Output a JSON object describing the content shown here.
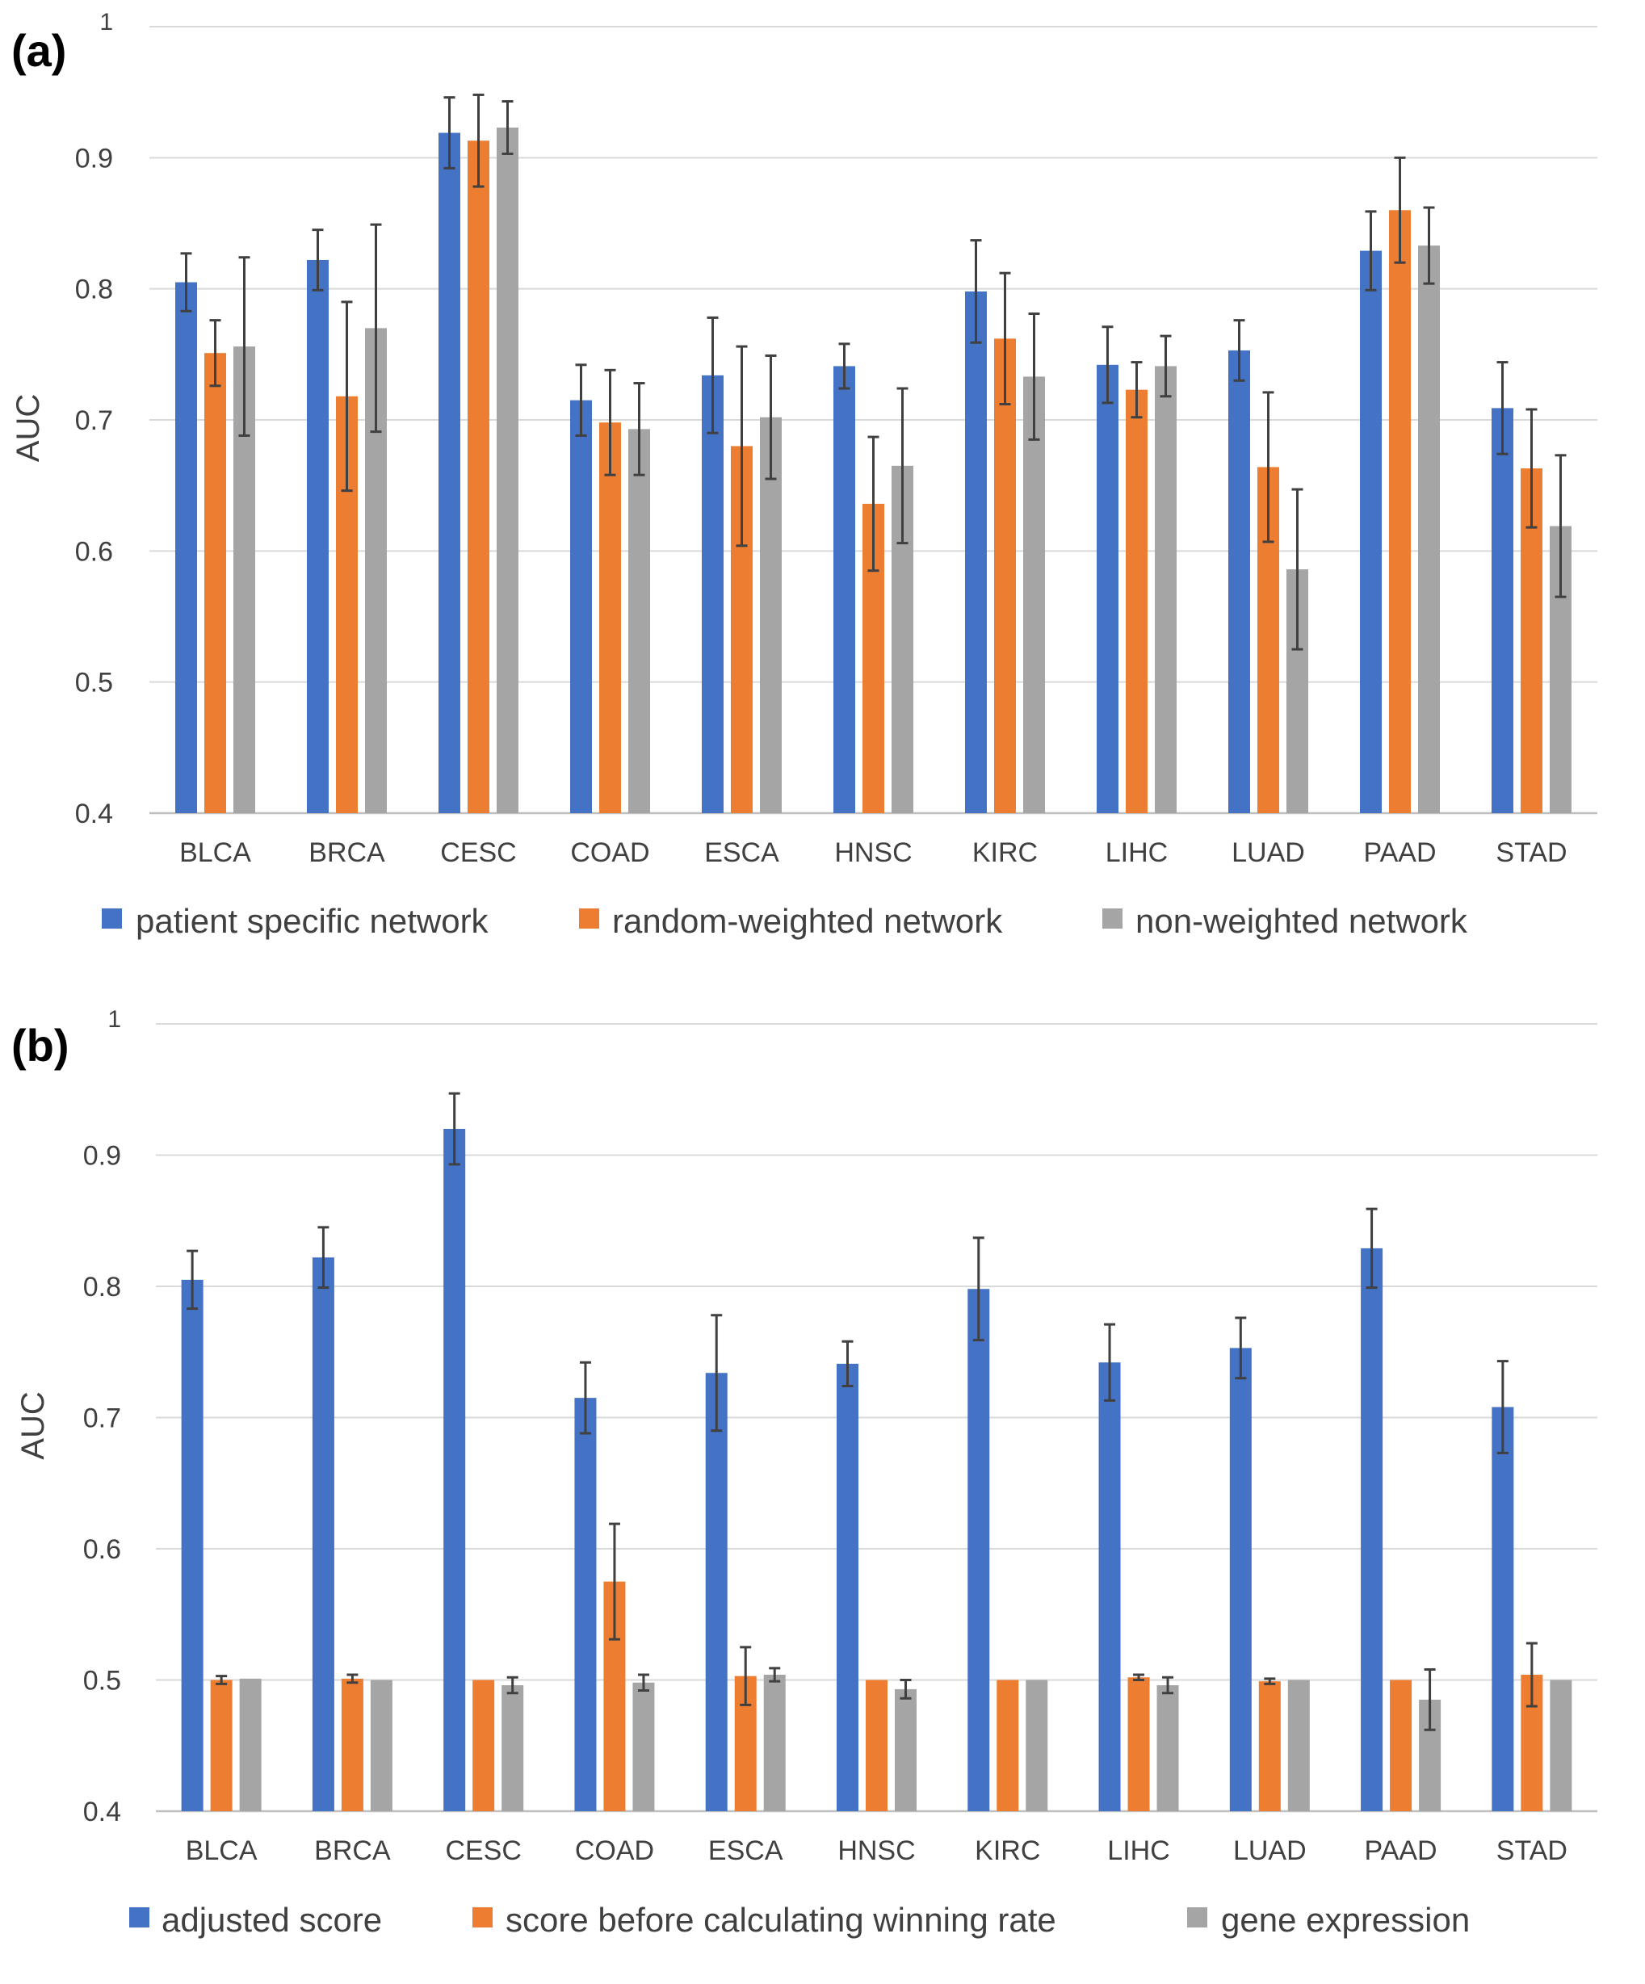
{
  "chart_data": [
    {
      "panel_label": "(a)",
      "type": "bar",
      "ylabel": "AUC",
      "xlabel": "",
      "ylim": [
        0.4,
        1.0
      ],
      "yticks": [
        "0.4",
        "0.5",
        "0.6",
        "0.7",
        "0.8",
        "0.9",
        "1"
      ],
      "grid": true,
      "legend_position": "bottom",
      "categories": [
        "BLCA",
        "BRCA",
        "CESC",
        "COAD",
        "ESCA",
        "HNSC",
        "KIRC",
        "LIHC",
        "LUAD",
        "PAAD",
        "STAD"
      ],
      "series": [
        {
          "name": "patient specific network",
          "color": "#4472C4",
          "values": [
            0.805,
            0.822,
            0.919,
            0.715,
            0.734,
            0.741,
            0.798,
            0.742,
            0.753,
            0.829,
            0.709
          ],
          "errors": [
            0.022,
            0.023,
            0.027,
            0.027,
            0.044,
            0.017,
            0.039,
            0.029,
            0.023,
            0.03,
            0.035
          ]
        },
        {
          "name": "random-weighted network",
          "color": "#ED7D31",
          "values": [
            0.751,
            0.718,
            0.913,
            0.698,
            0.68,
            0.636,
            0.762,
            0.723,
            0.664,
            0.86,
            0.663
          ],
          "errors": [
            0.025,
            0.072,
            0.035,
            0.04,
            0.076,
            0.051,
            0.05,
            0.021,
            0.057,
            0.04,
            0.045
          ]
        },
        {
          "name": "non-weighted network",
          "color": "#A5A5A5",
          "values": [
            0.756,
            0.77,
            0.923,
            0.693,
            0.702,
            0.665,
            0.733,
            0.741,
            0.586,
            0.833,
            0.619
          ],
          "errors": [
            0.068,
            0.079,
            0.02,
            0.035,
            0.047,
            0.059,
            0.048,
            0.023,
            0.061,
            0.029,
            0.054
          ]
        }
      ]
    },
    {
      "panel_label": "(b)",
      "type": "bar",
      "ylabel": "AUC",
      "xlabel": "",
      "ylim": [
        0.4,
        1.0
      ],
      "yticks": [
        "0.4",
        "0.5",
        "0.6",
        "0.7",
        "0.8",
        "0.9",
        "1"
      ],
      "grid": true,
      "legend_position": "bottom",
      "categories": [
        "BLCA",
        "BRCA",
        "CESC",
        "COAD",
        "ESCA",
        "HNSC",
        "KIRC",
        "LIHC",
        "LUAD",
        "PAAD",
        "STAD"
      ],
      "series": [
        {
          "name": "adjusted score",
          "color": "#4472C4",
          "values": [
            0.805,
            0.822,
            0.92,
            0.715,
            0.734,
            0.741,
            0.798,
            0.742,
            0.753,
            0.829,
            0.708
          ],
          "errors": [
            0.022,
            0.023,
            0.027,
            0.027,
            0.044,
            0.017,
            0.039,
            0.029,
            0.023,
            0.03,
            0.035
          ]
        },
        {
          "name": "score before calculating winning rate",
          "color": "#ED7D31",
          "values": [
            0.5,
            0.501,
            0.5,
            0.575,
            0.503,
            0.5,
            0.5,
            0.502,
            0.499,
            0.5,
            0.504
          ],
          "errors": [
            0.003,
            0.003,
            0.0,
            0.044,
            0.022,
            0.0,
            0.0,
            0.002,
            0.002,
            0.001,
            0.024
          ]
        },
        {
          "name": "gene expression",
          "color": "#A5A5A5",
          "values": [
            0.501,
            0.5,
            0.496,
            0.498,
            0.504,
            0.493,
            0.5,
            0.496,
            0.5,
            0.485,
            0.5
          ],
          "errors": [
            0.001,
            0.0,
            0.006,
            0.006,
            0.005,
            0.007,
            0.0,
            0.006,
            0.0,
            0.023,
            0.0
          ]
        }
      ]
    }
  ]
}
